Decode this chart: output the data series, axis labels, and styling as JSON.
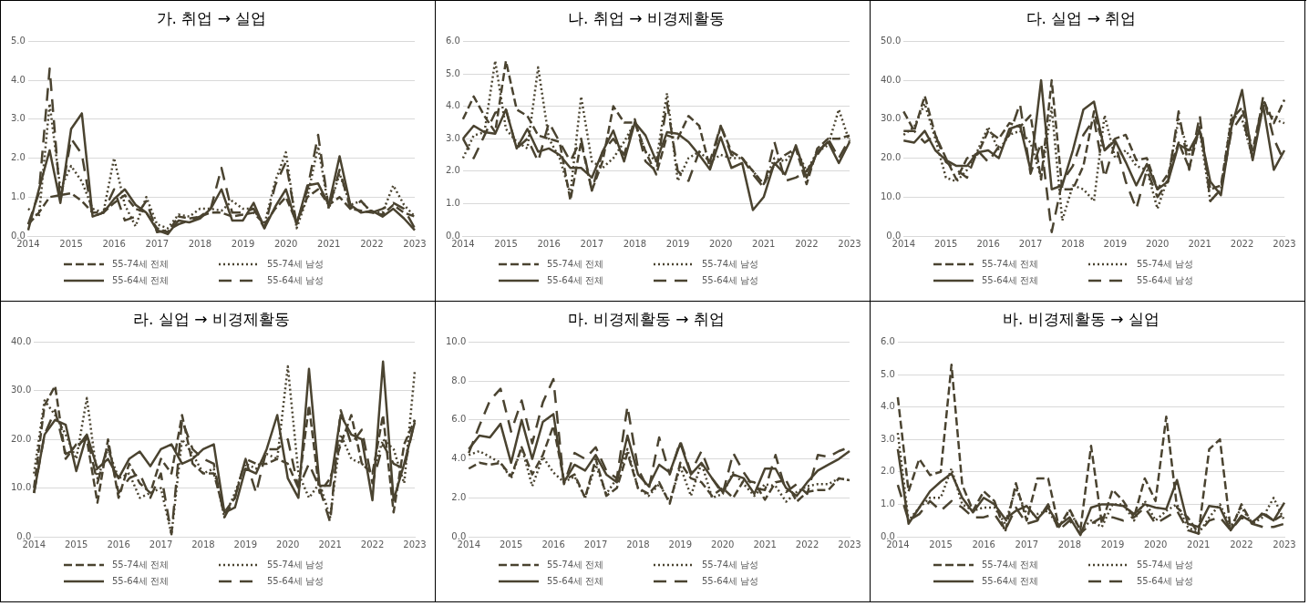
{
  "chart_data": [
    {
      "type": "line",
      "title": "가. 취업 → 실업",
      "x": [
        2014,
        2014.25,
        2014.5,
        2014.75,
        2015,
        2015.25,
        2015.5,
        2015.75,
        2016,
        2016.25,
        2016.5,
        2016.75,
        2017,
        2017.25,
        2017.5,
        2017.75,
        2018,
        2018.25,
        2018.5,
        2018.75,
        2019,
        2019.25,
        2019.5,
        2019.75,
        2020,
        2020.25,
        2020.5,
        2020.75,
        2021,
        2021.25,
        2021.5,
        2021.75,
        2022,
        2022.25,
        2022.5,
        2022.75,
        2023
      ],
      "xlim": [
        2014,
        2023
      ],
      "xticks": [
        2014,
        2015,
        2016,
        2017,
        2018,
        2019,
        2020,
        2021,
        2022,
        2023
      ],
      "ylim": [
        0,
        5
      ],
      "yticks": [
        {
          "value": 0,
          "label": "0.0"
        },
        {
          "value": 1,
          "label": "1.0"
        },
        {
          "value": 2,
          "label": "2.0"
        },
        {
          "value": 3,
          "label": "3.0"
        },
        {
          "value": 4,
          "label": "4.0"
        },
        {
          "value": 5,
          "label": "5.0"
        }
      ],
      "grid": "y",
      "legend": "bottom",
      "marker": "none",
      "series": [
        {
          "name": "55-74세 전체",
          "color": "#4a4330",
          "line_style": "dashed",
          "values": [
            0.3,
            0.6,
            1.0,
            1.05,
            1.1,
            0.9,
            0.6,
            0.6,
            0.85,
            1.05,
            0.7,
            0.6,
            0.2,
            0.1,
            0.5,
            0.45,
            0.5,
            0.6,
            0.6,
            0.5,
            0.55,
            0.6,
            0.3,
            0.7,
            1.0,
            0.35,
            1.0,
            1.2,
            0.8,
            1.0,
            0.7,
            0.65,
            0.6,
            0.55,
            0.8,
            0.6,
            0.5
          ]
        },
        {
          "name": "55-74세 남성",
          "color": "#4a4330",
          "line_style": "dotted",
          "values": [
            0.7,
            0.5,
            3.4,
            1.2,
            1.8,
            1.4,
            0.7,
            0.6,
            2.0,
            0.8,
            0.25,
            1.0,
            0.3,
            0.2,
            0.55,
            0.5,
            0.7,
            0.7,
            0.65,
            0.9,
            0.7,
            0.7,
            0.3,
            1.4,
            2.15,
            0.2,
            1.0,
            2.3,
            0.7,
            1.6,
            0.8,
            0.9,
            0.6,
            0.6,
            1.3,
            0.8,
            0.5
          ]
        },
        {
          "name": "55-64세 전체",
          "color": "#4a4330",
          "line_style": "solid",
          "values": [
            0.15,
            1.2,
            2.2,
            0.85,
            2.75,
            3.15,
            0.5,
            0.6,
            0.95,
            1.2,
            0.8,
            0.6,
            0.15,
            0.05,
            0.4,
            0.35,
            0.45,
            0.7,
            1.2,
            0.4,
            0.4,
            0.85,
            0.2,
            0.75,
            1.2,
            0.3,
            1.3,
            1.35,
            0.8,
            2.05,
            0.8,
            0.6,
            0.65,
            0.5,
            0.7,
            0.45,
            0.15
          ]
        },
        {
          "name": "55-64세 남성",
          "color": "#4a4330",
          "line_style": "dashed",
          "values": [
            0.3,
            1.1,
            4.3,
            0.9,
            2.5,
            2.1,
            0.5,
            0.6,
            1.2,
            0.4,
            0.5,
            0.9,
            0.1,
            0.15,
            0.3,
            0.4,
            0.5,
            0.7,
            1.75,
            0.6,
            0.6,
            0.7,
            0.2,
            1.3,
            1.9,
            0.3,
            1.2,
            2.6,
            0.7,
            1.7,
            0.7,
            0.9,
            0.6,
            0.7,
            0.85,
            0.7,
            0.2
          ]
        }
      ]
    },
    {
      "type": "line",
      "title": "나. 취업 → 비경제활동",
      "x": [
        2014,
        2014.25,
        2014.5,
        2014.75,
        2015,
        2015.25,
        2015.5,
        2015.75,
        2016,
        2016.25,
        2016.5,
        2016.75,
        2017,
        2017.25,
        2017.5,
        2017.75,
        2018,
        2018.25,
        2018.5,
        2018.75,
        2019,
        2019.25,
        2019.5,
        2019.75,
        2020,
        2020.25,
        2020.5,
        2020.75,
        2021,
        2021.25,
        2021.5,
        2021.75,
        2022,
        2022.25,
        2022.5,
        2022.75,
        2023
      ],
      "xlim": [
        2014,
        2023
      ],
      "xticks": [
        2014,
        2015,
        2016,
        2017,
        2018,
        2019,
        2020,
        2021,
        2022,
        2023
      ],
      "ylim": [
        0,
        6
      ],
      "yticks": [
        {
          "value": 0,
          "label": "0.0"
        },
        {
          "value": 1,
          "label": "1.0"
        },
        {
          "value": 2,
          "label": "2.0"
        },
        {
          "value": 3,
          "label": "3.0"
        },
        {
          "value": 4,
          "label": "4.0"
        },
        {
          "value": 5,
          "label": "5.0"
        },
        {
          "value": 6,
          "label": "6.0"
        }
      ],
      "grid": "y",
      "legend": "bottom",
      "marker": "none",
      "series": [
        {
          "name": "55-74세 전체",
          "color": "#4a4330",
          "line_style": "dashed",
          "values": [
            3.6,
            4.3,
            3.7,
            3.2,
            5.4,
            3.9,
            3.7,
            3.1,
            3.0,
            2.9,
            1.1,
            2.9,
            1.4,
            2.3,
            4.0,
            3.5,
            3.5,
            2.6,
            1.9,
            3.1,
            3.0,
            3.7,
            3.4,
            2.1,
            3.4,
            2.6,
            2.4,
            2.0,
            1.6,
            2.2,
            2.5,
            2.7,
            1.6,
            2.7,
            3.0,
            3.0,
            3.1
          ]
        },
        {
          "name": "55-74세 남성",
          "color": "#4a4330",
          "line_style": "dotted",
          "values": [
            2.4,
            3.1,
            3.2,
            5.4,
            3.3,
            2.9,
            2.7,
            5.2,
            3.0,
            2.4,
            1.3,
            4.3,
            2.3,
            2.1,
            2.4,
            2.9,
            3.5,
            2.6,
            2.3,
            4.4,
            1.7,
            2.4,
            2.6,
            2.3,
            2.5,
            2.4,
            2.4,
            2.0,
            1.6,
            2.4,
            2.3,
            2.7,
            2.0,
            2.6,
            2.8,
            3.9,
            2.9
          ]
        },
        {
          "name": "55-64세 전체",
          "color": "#4a4330",
          "line_style": "solid",
          "values": [
            3.0,
            3.4,
            3.2,
            3.15,
            3.9,
            2.7,
            3.3,
            2.6,
            2.7,
            2.5,
            2.1,
            2.1,
            1.8,
            2.6,
            3.25,
            2.3,
            3.5,
            3.1,
            2.3,
            3.2,
            3.15,
            2.9,
            2.5,
            2.05,
            3.05,
            2.1,
            2.25,
            0.8,
            1.2,
            2.25,
            1.9,
            2.8,
            1.8,
            2.6,
            2.9,
            2.25,
            2.9
          ]
        },
        {
          "name": "55-64세 남성",
          "color": "#4a4330",
          "line_style": "dashed",
          "values": [
            3.0,
            2.4,
            3.1,
            3.8,
            3.9,
            2.7,
            3.0,
            2.3,
            3.5,
            2.9,
            2.3,
            3.0,
            1.4,
            2.6,
            3.0,
            2.5,
            3.6,
            2.3,
            2.0,
            4.1,
            2.0,
            1.7,
            2.6,
            2.3,
            3.4,
            2.5,
            2.4,
            1.9,
            1.5,
            2.9,
            1.7,
            1.8,
            2.0,
            2.5,
            3.0,
            2.4,
            3.0
          ]
        }
      ]
    },
    {
      "type": "line",
      "title": "다. 실업 → 취업",
      "x": [
        2014,
        2014.25,
        2014.5,
        2014.75,
        2015,
        2015.25,
        2015.5,
        2015.75,
        2016,
        2016.25,
        2016.5,
        2016.75,
        2017,
        2017.25,
        2017.5,
        2017.75,
        2018,
        2018.25,
        2018.5,
        2018.75,
        2019,
        2019.25,
        2019.5,
        2019.75,
        2020,
        2020.25,
        2020.5,
        2020.75,
        2021,
        2021.25,
        2021.5,
        2021.75,
        2022,
        2022.25,
        2022.5,
        2022.75,
        2023
      ],
      "xlim": [
        2014,
        2023
      ],
      "xticks": [
        2014,
        2015,
        2016,
        2017,
        2018,
        2019,
        2020,
        2021,
        2022,
        2023
      ],
      "ylim": [
        0,
        50
      ],
      "yticks": [
        {
          "value": 0,
          "label": "0.0"
        },
        {
          "value": 10,
          "label": "10.0"
        },
        {
          "value": 20,
          "label": "20.0"
        },
        {
          "value": 30,
          "label": "30.0"
        },
        {
          "value": 40,
          "label": "40.0"
        },
        {
          "value": 50,
          "label": "50.0"
        }
      ],
      "grid": "y",
      "legend": "bottom",
      "marker": "none",
      "series": [
        {
          "name": "55-74세 전체",
          "color": "#4a4330",
          "line_style": "dashed",
          "values": [
            32,
            27,
            36,
            26,
            20,
            14.5,
            20,
            21,
            27,
            25,
            29,
            28,
            31,
            14.5,
            40,
            12,
            12,
            18,
            32,
            22,
            25,
            26,
            19.5,
            20,
            12,
            16,
            24,
            17.5,
            28,
            12,
            13,
            30,
            33,
            22,
            35,
            29,
            35
          ]
        },
        {
          "name": "55-74세 남성",
          "color": "#4a4330",
          "line_style": "dotted",
          "values": [
            26,
            28,
            34,
            25,
            15,
            14,
            17,
            22,
            28,
            22,
            26,
            27,
            24,
            15,
            33,
            4,
            13,
            12,
            9,
            31,
            20,
            22,
            18,
            17,
            7,
            15,
            30,
            21,
            27,
            9,
            12,
            31,
            30,
            20,
            34,
            30,
            29
          ]
        },
        {
          "name": "55-64세 전체",
          "color": "#4a4330",
          "line_style": "solid",
          "values": [
            24.5,
            24,
            27,
            22,
            19.5,
            18,
            18,
            21.5,
            22,
            20,
            27.5,
            28.5,
            17,
            40,
            12,
            13,
            22,
            32.5,
            34.5,
            22,
            24.5,
            19,
            13,
            18.5,
            12,
            14,
            23.5,
            22,
            27,
            14,
            10.5,
            28,
            37.5,
            19.5,
            33.5,
            17,
            22
          ]
        },
        {
          "name": "55-64세 남성",
          "color": "#4a4330",
          "line_style": "dashed",
          "values": [
            27,
            27,
            24,
            26,
            19,
            17,
            15,
            22,
            19,
            23,
            26,
            34,
            16,
            24,
            1,
            14,
            18,
            26,
            30,
            15,
            24,
            14,
            7,
            17,
            10,
            14,
            32,
            17,
            31,
            9,
            12,
            27,
            31,
            20,
            36,
            25,
            19
          ]
        }
      ]
    },
    {
      "type": "line",
      "title": "라. 실업 → 비경제활동",
      "x": [
        2014,
        2014.25,
        2014.5,
        2014.75,
        2015,
        2015.25,
        2015.5,
        2015.75,
        2016,
        2016.25,
        2016.5,
        2016.75,
        2017,
        2017.25,
        2017.5,
        2017.75,
        2018,
        2018.25,
        2018.5,
        2018.75,
        2019,
        2019.25,
        2019.5,
        2019.75,
        2020,
        2020.25,
        2020.5,
        2020.75,
        2021,
        2021.25,
        2021.5,
        2021.75,
        2022,
        2022.25,
        2022.5,
        2022.75,
        2023
      ],
      "xlim": [
        2014,
        2023
      ],
      "xticks": [
        2014,
        2015,
        2016,
        2017,
        2018,
        2019,
        2020,
        2021,
        2022,
        2023
      ],
      "ylim": [
        0,
        40
      ],
      "yticks": [
        {
          "value": 0,
          "label": "0.0"
        },
        {
          "value": 10,
          "label": "10.0"
        },
        {
          "value": 20,
          "label": "20.0"
        },
        {
          "value": 30,
          "label": "30.0"
        },
        {
          "value": 40,
          "label": "40.0"
        }
      ],
      "grid": "y",
      "legend": "bottom",
      "marker": "none",
      "series": [
        {
          "name": "55-74세 전체",
          "color": "#4a4330",
          "line_style": "dashed",
          "values": [
            10,
            27,
            31,
            16,
            19,
            20,
            7,
            20,
            8,
            15,
            11,
            9,
            16,
            13,
            25,
            15,
            13,
            13,
            5,
            8,
            16,
            15,
            15,
            16,
            15,
            10,
            27,
            9,
            12,
            19,
            25,
            15,
            13,
            25,
            5,
            19,
            24
          ]
        },
        {
          "name": "55-74세 남성",
          "color": "#4a4330",
          "line_style": "dotted",
          "values": [
            13,
            28,
            25,
            21,
            16,
            28.5,
            12,
            18,
            12,
            13,
            8,
            9,
            10,
            0.5,
            20,
            17,
            13,
            14,
            4,
            9,
            15,
            14,
            17,
            16,
            35,
            13,
            8,
            11,
            4,
            21,
            16,
            15,
            13,
            20,
            18,
            11,
            34
          ]
        },
        {
          "name": "55-64세 전체",
          "color": "#4a4330",
          "line_style": "solid",
          "values": [
            9,
            21,
            24,
            23,
            13.5,
            21,
            14,
            16,
            12,
            16,
            17.5,
            14.5,
            18,
            19,
            15,
            16,
            18,
            19,
            5,
            6,
            14,
            13,
            18,
            25,
            12,
            8,
            34.5,
            10.5,
            10.5,
            25,
            21,
            20,
            7.5,
            36,
            7.5,
            15,
            23.5
          ]
        },
        {
          "name": "55-64세 남성",
          "color": "#4a4330",
          "line_style": "dashed",
          "values": [
            9,
            21,
            26,
            17,
            18,
            21,
            11,
            19,
            9,
            12,
            13,
            8,
            13,
            0.5,
            24,
            18,
            16,
            15,
            4,
            8,
            16,
            9,
            18,
            18,
            20,
            10,
            15,
            10,
            3,
            26,
            19,
            22,
            11,
            19,
            15,
            14,
            24
          ]
        }
      ]
    },
    {
      "type": "line",
      "title": "마. 비경제활동 → 취업",
      "x": [
        2014,
        2014.25,
        2014.5,
        2014.75,
        2015,
        2015.25,
        2015.5,
        2015.75,
        2016,
        2016.25,
        2016.5,
        2016.75,
        2017,
        2017.25,
        2017.5,
        2017.75,
        2018,
        2018.25,
        2018.5,
        2018.75,
        2019,
        2019.25,
        2019.5,
        2019.75,
        2020,
        2020.25,
        2020.5,
        2020.75,
        2021,
        2021.25,
        2021.5,
        2021.75,
        2022,
        2022.25,
        2022.5,
        2022.75,
        2023
      ],
      "xlim": [
        2014,
        2023
      ],
      "xticks": [
        2014,
        2015,
        2016,
        2017,
        2018,
        2019,
        2020,
        2021,
        2022,
        2023
      ],
      "ylim": [
        0,
        10
      ],
      "yticks": [
        {
          "value": 0,
          "label": "0.0"
        },
        {
          "value": 2,
          "label": "2.0"
        },
        {
          "value": 4,
          "label": "4.0"
        },
        {
          "value": 6,
          "label": "6.0"
        },
        {
          "value": 8,
          "label": "8.0"
        },
        {
          "value": 10,
          "label": "10.0"
        }
      ],
      "grid": "y",
      "legend": "bottom",
      "marker": "none",
      "series": [
        {
          "name": "55-74세 전체",
          "color": "#4a4330",
          "line_style": "dashed",
          "values": [
            3.5,
            3.8,
            3.7,
            3.8,
            3.1,
            4.6,
            3.2,
            4.2,
            5.7,
            2.9,
            3.2,
            2.0,
            4.0,
            2.1,
            2.5,
            4.3,
            2.5,
            2.2,
            2.8,
            1.7,
            3.8,
            3.0,
            2.8,
            2.1,
            2.5,
            2.0,
            2.9,
            2.8,
            1.9,
            2.8,
            2.9,
            1.8,
            2.3,
            2.4,
            2.4,
            3.0,
            2.9
          ]
        },
        {
          "name": "55-74세 남성",
          "color": "#4a4330",
          "line_style": "dotted",
          "values": [
            4.2,
            4.4,
            4.1,
            3.8,
            3.0,
            4.6,
            2.6,
            4.1,
            3.3,
            2.8,
            3.1,
            2.0,
            3.7,
            2.2,
            3.0,
            4.5,
            2.5,
            2.1,
            2.7,
            1.8,
            3.6,
            2.1,
            3.8,
            2.0,
            2.2,
            3.3,
            2.7,
            2.1,
            2.7,
            2.6,
            1.8,
            2.3,
            2.6,
            2.7,
            2.7,
            3.0,
            2.9
          ]
        },
        {
          "name": "55-64세 전체",
          "color": "#4a4330",
          "line_style": "solid",
          "values": [
            4.5,
            5.2,
            5.1,
            5.8,
            3.8,
            6.0,
            4.0,
            5.9,
            6.3,
            2.8,
            3.7,
            3.4,
            4.2,
            3.2,
            2.8,
            5.2,
            3.2,
            2.6,
            3.7,
            3.3,
            4.8,
            3.2,
            3.8,
            3.0,
            2.3,
            3.2,
            3.0,
            2.2,
            3.5,
            3.5,
            2.5,
            2.1,
            2.8,
            3.4,
            3.7,
            4.0,
            4.4
          ]
        },
        {
          "name": "55-64세 남성",
          "color": "#4a4330",
          "line_style": "dashed",
          "values": [
            4.3,
            5.7,
            7.0,
            7.6,
            5.4,
            7.0,
            4.8,
            6.9,
            8.1,
            2.7,
            4.3,
            4.0,
            4.6,
            3.4,
            3.0,
            6.7,
            3.5,
            2.4,
            5.1,
            3.2,
            4.9,
            3.3,
            4.4,
            3.0,
            2.2,
            4.3,
            3.3,
            2.5,
            2.4,
            4.2,
            2.3,
            2.7,
            2.2,
            4.2,
            4.1,
            4.4,
            4.6
          ]
        }
      ]
    },
    {
      "type": "line",
      "title": "바. 비경제활동 → 실업",
      "x": [
        2014,
        2014.25,
        2014.5,
        2014.75,
        2015,
        2015.25,
        2015.5,
        2015.75,
        2016,
        2016.25,
        2016.5,
        2016.75,
        2017,
        2017.25,
        2017.5,
        2017.75,
        2018,
        2018.25,
        2018.5,
        2018.75,
        2019,
        2019.25,
        2019.5,
        2019.75,
        2020,
        2020.25,
        2020.5,
        2020.75,
        2021,
        2021.25,
        2021.5,
        2021.75,
        2022,
        2022.25,
        2022.5,
        2022.75,
        2023
      ],
      "xlim": [
        2014,
        2023
      ],
      "xticks": [
        2014,
        2015,
        2016,
        2017,
        2018,
        2019,
        2020,
        2021,
        2022,
        2023
      ],
      "ylim": [
        0,
        6
      ],
      "yticks": [
        {
          "value": 0,
          "label": "0.0"
        },
        {
          "value": 1,
          "label": "1.0"
        },
        {
          "value": 2,
          "label": "2.0"
        },
        {
          "value": 3,
          "label": "3.0"
        },
        {
          "value": 4,
          "label": "4.0"
        },
        {
          "value": 5,
          "label": "5.0"
        },
        {
          "value": 6,
          "label": "6.0"
        }
      ],
      "grid": "y",
      "legend": "bottom",
      "marker": "none",
      "series": [
        {
          "name": "55-74세 전체",
          "color": "#4a4330",
          "line_style": "dashed",
          "values": [
            4.3,
            1.4,
            2.4,
            1.9,
            2.0,
            5.3,
            1.6,
            0.8,
            1.4,
            1.1,
            0.15,
            1.65,
            0.5,
            1.8,
            1.8,
            0.3,
            0.85,
            0.2,
            2.8,
            0.4,
            1.45,
            1.1,
            0.6,
            1.8,
            1.1,
            3.7,
            0.9,
            0.6,
            0.1,
            2.7,
            3.0,
            0.2,
            1.0,
            0.4,
            0.75,
            0.5,
            0.7
          ]
        },
        {
          "name": "55-74세 남성",
          "color": "#4a4330",
          "line_style": "dotted",
          "values": [
            3.2,
            0.5,
            0.9,
            1.2,
            1.2,
            2.1,
            1.0,
            0.8,
            0.9,
            0.9,
            0.4,
            1.5,
            0.7,
            0.7,
            0.8,
            0.3,
            0.8,
            0.2,
            0.5,
            0.3,
            1.0,
            1.0,
            0.5,
            1.1,
            0.5,
            0.8,
            1.0,
            0.3,
            0.1,
            0.6,
            1.0,
            0.3,
            0.9,
            0.4,
            0.6,
            1.2,
            0.5
          ]
        },
        {
          "name": "55-64세 전체",
          "color": "#4a4330",
          "line_style": "solid",
          "values": [
            2.7,
            0.4,
            0.9,
            1.4,
            1.7,
            1.95,
            1.2,
            0.75,
            1.2,
            1.0,
            0.55,
            0.8,
            0.95,
            0.55,
            0.9,
            0.35,
            0.6,
            0.05,
            0.9,
            1.0,
            1.0,
            0.95,
            0.7,
            1.0,
            0.9,
            0.85,
            1.75,
            0.4,
            0.3,
            0.95,
            0.9,
            0.2,
            0.65,
            0.45,
            0.7,
            0.5,
            1.05
          ]
        },
        {
          "name": "55-64세 남성",
          "color": "#4a4330",
          "line_style": "dashed",
          "values": [
            1.6,
            0.5,
            0.7,
            1.1,
            0.8,
            1.1,
            0.9,
            0.6,
            0.6,
            0.7,
            0.2,
            0.9,
            0.4,
            0.5,
            1.0,
            0.2,
            0.5,
            0.1,
            0.4,
            0.6,
            0.6,
            0.5,
            0.6,
            0.9,
            0.4,
            0.6,
            0.8,
            0.2,
            0.1,
            0.5,
            0.6,
            0.2,
            0.6,
            0.4,
            0.3,
            0.3,
            0.4
          ]
        }
      ]
    }
  ]
}
